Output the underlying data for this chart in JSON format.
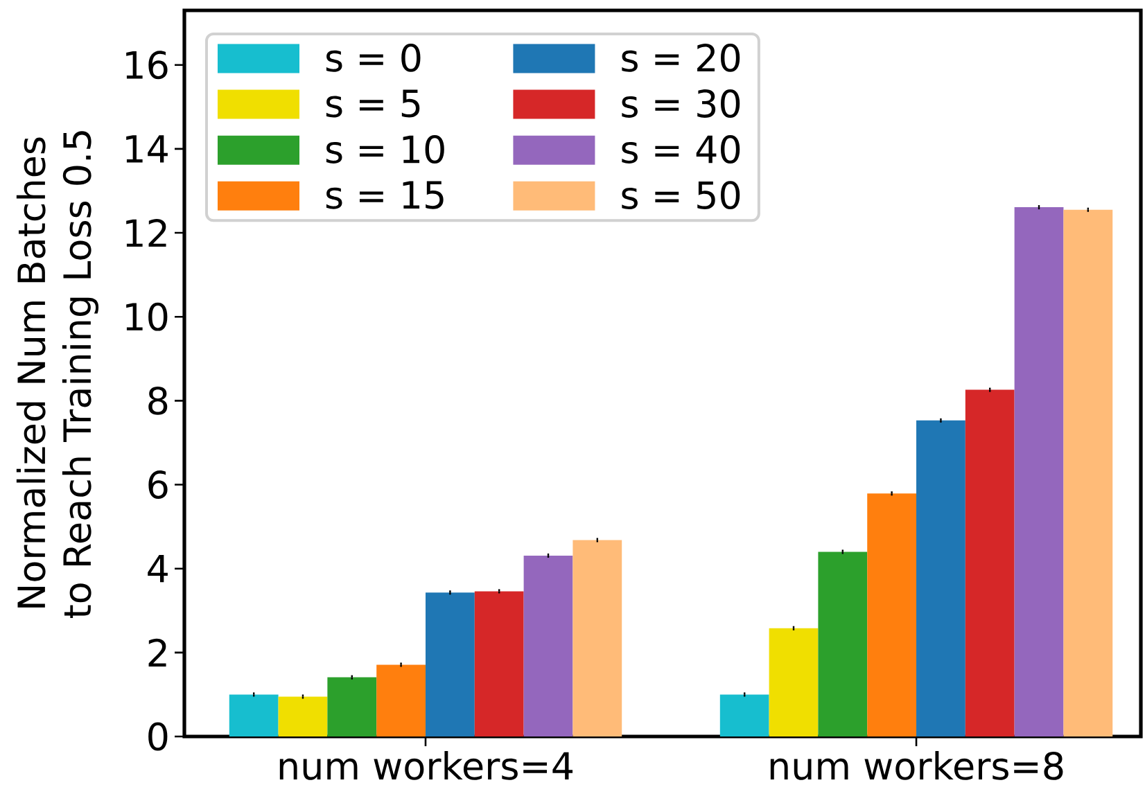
{
  "chart_data": {
    "type": "bar",
    "ylabel": "Normalized Num Batches to Reach Training Loss 0.5",
    "categories": [
      "num workers=4",
      "num workers=8"
    ],
    "series": [
      {
        "name": "s = 0",
        "color": "#17becf",
        "values": [
          1.0,
          1.0
        ],
        "errors": [
          0.05,
          0.05
        ]
      },
      {
        "name": "s = 5",
        "color": "#f0df00",
        "values": [
          0.95,
          2.58
        ],
        "errors": [
          0.05,
          0.05
        ]
      },
      {
        "name": "s = 10",
        "color": "#2ca02c",
        "values": [
          1.41,
          4.4
        ],
        "errors": [
          0.05,
          0.05
        ]
      },
      {
        "name": "s = 15",
        "color": "#ff7f0e",
        "values": [
          1.71,
          5.79
        ],
        "errors": [
          0.05,
          0.05
        ]
      },
      {
        "name": "s = 20",
        "color": "#1f77b4",
        "values": [
          3.43,
          7.53
        ],
        "errors": [
          0.05,
          0.05
        ]
      },
      {
        "name": "s = 30",
        "color": "#d62728",
        "values": [
          3.46,
          8.26
        ],
        "errors": [
          0.05,
          0.05
        ]
      },
      {
        "name": "s = 40",
        "color": "#9467bd",
        "values": [
          4.31,
          12.61
        ],
        "errors": [
          0.05,
          0.05
        ]
      },
      {
        "name": "s = 50",
        "color": "#ffbb78",
        "values": [
          4.68,
          12.55
        ],
        "errors": [
          0.05,
          0.05
        ]
      }
    ],
    "ylim": [
      0,
      17.3
    ],
    "yticks": [
      0,
      2,
      4,
      6,
      8,
      10,
      12,
      14,
      16
    ],
    "legend": "top left"
  }
}
